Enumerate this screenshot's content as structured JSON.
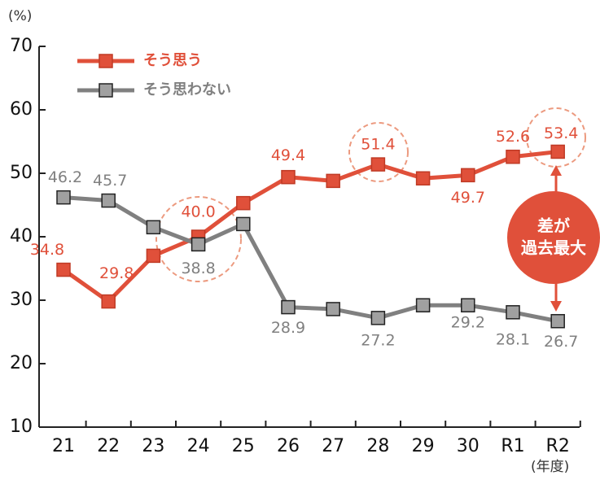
{
  "chart_data": {
    "type": "line",
    "y_unit": "(%)",
    "x_unit": "(年度)",
    "annotation": [
      "差が",
      "過去最大"
    ],
    "categories": [
      "21",
      "22",
      "23",
      "24",
      "25",
      "26",
      "27",
      "28",
      "29",
      "30",
      "R1",
      "R2"
    ],
    "series": [
      {
        "name": "そう思う",
        "color": "#e0503a",
        "values": [
          34.8,
          29.8,
          37.0,
          40.0,
          45.3,
          49.4,
          48.8,
          51.4,
          49.2,
          49.7,
          52.6,
          53.4
        ],
        "value_labels": [
          "34.8",
          "29.8",
          null,
          "40.0",
          null,
          "49.4",
          null,
          "51.4",
          null,
          "49.7",
          "52.6",
          "53.4"
        ]
      },
      {
        "name": "そう思わない",
        "color": "#808080",
        "values": [
          46.2,
          45.7,
          41.5,
          38.8,
          42.0,
          28.9,
          28.6,
          27.2,
          29.2,
          29.2,
          28.1,
          26.7
        ],
        "value_labels": [
          "46.2",
          "45.7",
          null,
          "38.8",
          null,
          "28.9",
          null,
          "27.2",
          null,
          "29.2",
          "28.1",
          "26.7"
        ]
      }
    ],
    "ylim": [
      10,
      70
    ],
    "yticks": [
      10,
      20,
      30,
      40,
      50,
      60,
      70
    ],
    "legend": "top-left"
  }
}
